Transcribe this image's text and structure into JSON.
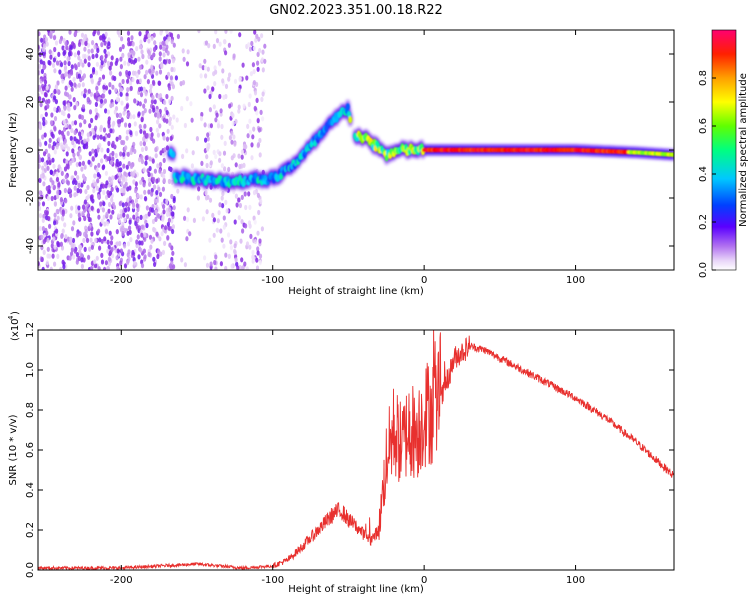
{
  "chart_data": [
    {
      "type": "heatmap",
      "title": "GN02.2023.351.00.18.R22",
      "xlabel": "Height of straight line (km)",
      "ylabel": "Frequency (Hz)",
      "xlim": [
        -255,
        165
      ],
      "ylim": [
        -50,
        50
      ],
      "xticks": [
        -200,
        -100,
        0,
        100
      ],
      "yticks": [
        -40,
        -20,
        0,
        20,
        40
      ],
      "colorbar": {
        "label": "Normalized spectral amplitude",
        "range": [
          0.0,
          1.0
        ],
        "ticks": [
          "0.0",
          "0.2",
          "0.4",
          "0.6",
          "0.8"
        ],
        "colormap": [
          "#ffffff",
          "#d9b8f2",
          "#8a2be2",
          "#3a00ff",
          "#0060ff",
          "#00d8ff",
          "#00ff7f",
          "#7fff00",
          "#ffff00",
          "#ff8800",
          "#ff0000",
          "#ff0066"
        ]
      },
      "ridge_frequency": {
        "x": [
          -165,
          -150,
          -140,
          -125,
          -110,
          -100,
          -90,
          -80,
          -70,
          -60,
          -50,
          -48,
          -45,
          -40,
          -35,
          -30,
          -25,
          -20,
          -15,
          -10,
          -5,
          0,
          20,
          50,
          100,
          140,
          165
        ],
        "y": [
          -11,
          -12,
          -13,
          -13,
          -12,
          -12,
          -8,
          -2,
          5,
          12,
          18,
          8,
          6,
          5,
          3,
          1,
          -2,
          -1,
          0,
          0,
          0,
          0,
          0,
          0,
          0,
          -1,
          -2
        ]
      },
      "noise_region_x": [
        -255,
        -105
      ]
    },
    {
      "type": "line",
      "xlabel": "Height of straight line (km)",
      "ylabel": "SNR (10 * v/v)",
      "y_scale_label": "(x10",
      "y_scale_exponent": "4",
      "xlim": [
        -255,
        165
      ],
      "ylim": [
        0.0,
        1.2
      ],
      "xticks": [
        -200,
        -100,
        0,
        100
      ],
      "yticks": [
        "0.0",
        "0.2",
        "0.4",
        "0.6",
        "0.8",
        "1.0",
        "1.2"
      ],
      "color": "#e8302e",
      "x": [
        -255,
        -200,
        -150,
        -120,
        -100,
        -90,
        -80,
        -70,
        -60,
        -55,
        -50,
        -45,
        -40,
        -35,
        -30,
        -25,
        -20,
        -15,
        -10,
        -5,
        0,
        10,
        20,
        30,
        40,
        60,
        80,
        100,
        120,
        140,
        165
      ],
      "y": [
        0.01,
        0.01,
        0.03,
        0.01,
        0.02,
        0.05,
        0.12,
        0.2,
        0.28,
        0.3,
        0.25,
        0.22,
        0.18,
        0.15,
        0.2,
        0.55,
        0.7,
        0.62,
        0.72,
        0.68,
        0.78,
        0.82,
        1.06,
        1.12,
        1.1,
        1.02,
        0.94,
        0.86,
        0.76,
        0.64,
        0.47
      ]
    }
  ]
}
